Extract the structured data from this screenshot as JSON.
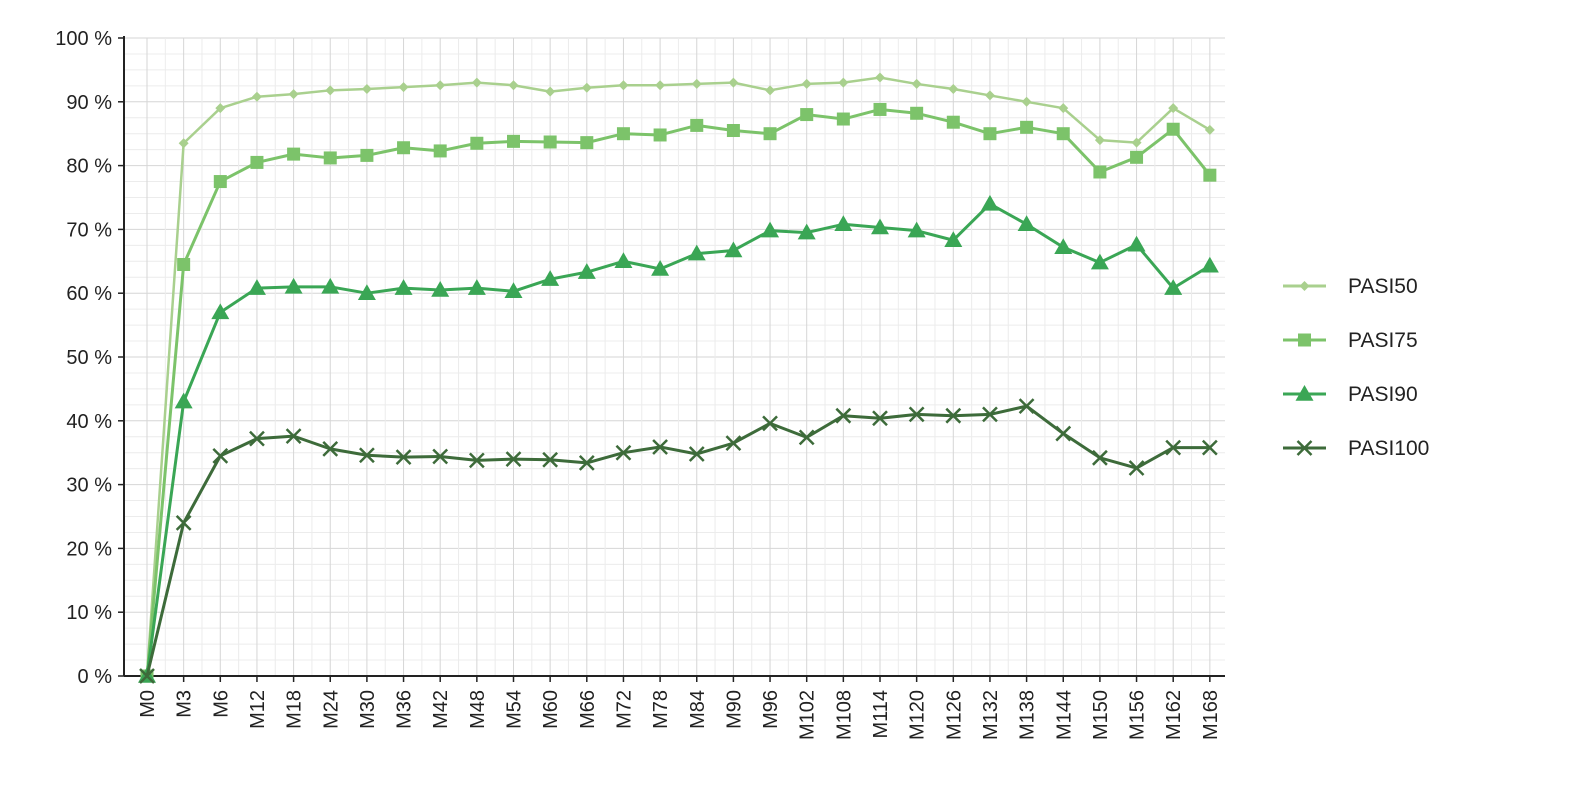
{
  "chart_data": {
    "type": "line",
    "title": "",
    "xlabel": "",
    "ylabel": "",
    "categories": [
      "M0",
      "M3",
      "M6",
      "M12",
      "M18",
      "M24",
      "M30",
      "M36",
      "M42",
      "M48",
      "M54",
      "M60",
      "M66",
      "M72",
      "M78",
      "M84",
      "M90",
      "M96",
      "M102",
      "M108",
      "M114",
      "M120",
      "M126",
      "M132",
      "M138",
      "M144",
      "M150",
      "M156",
      "M162",
      "M168"
    ],
    "y_ticks": [
      "0 %",
      "10 %",
      "20 %",
      "30 %",
      "40 %",
      "50 %",
      "60 %",
      "70 %",
      "80 %",
      "90 %",
      "100 %"
    ],
    "ylim": [
      0,
      100
    ],
    "grid": true,
    "legend_position": "right",
    "series": [
      {
        "name": "PASI50",
        "color": "#a9d08e",
        "marker": "diamond",
        "values": [
          0,
          83.5,
          89,
          90.8,
          91.2,
          91.8,
          92,
          92.3,
          92.6,
          93,
          92.6,
          91.6,
          92.2,
          92.6,
          92.6,
          92.8,
          93,
          91.8,
          92.8,
          93,
          93.8,
          92.8,
          92,
          91,
          90,
          89,
          84,
          83.6,
          89,
          85.6
        ]
      },
      {
        "name": "PASI75",
        "color": "#7cc36a",
        "marker": "square",
        "values": [
          0,
          64.5,
          77.5,
          80.5,
          81.8,
          81.2,
          81.6,
          82.8,
          82.3,
          83.5,
          83.8,
          83.7,
          83.6,
          85,
          84.8,
          86.3,
          85.5,
          85,
          88,
          87.3,
          88.8,
          88.2,
          86.8,
          85,
          86,
          85,
          79,
          81.3,
          85.7,
          78.5
        ]
      },
      {
        "name": "PASI90",
        "color": "#3aa655",
        "marker": "triangle",
        "values": [
          0,
          43,
          57,
          60.8,
          61,
          61,
          60,
          60.8,
          60.5,
          60.8,
          60.3,
          62.2,
          63.3,
          65,
          63.8,
          66.2,
          66.7,
          69.8,
          69.5,
          70.8,
          70.3,
          69.8,
          68.3,
          74,
          70.8,
          67.2,
          64.8,
          67.6,
          60.8,
          64.3
        ]
      },
      {
        "name": "PASI100",
        "color": "#3d6b3a",
        "marker": "cross",
        "values": [
          0,
          24,
          34.5,
          37.2,
          37.6,
          35.6,
          34.6,
          34.3,
          34.4,
          33.8,
          34,
          33.9,
          33.4,
          35,
          35.9,
          34.8,
          36.5,
          39.6,
          37.4,
          40.8,
          40.4,
          41,
          40.8,
          41,
          42.3,
          38,
          34.2,
          32.6,
          35.8,
          35.8
        ]
      }
    ]
  }
}
